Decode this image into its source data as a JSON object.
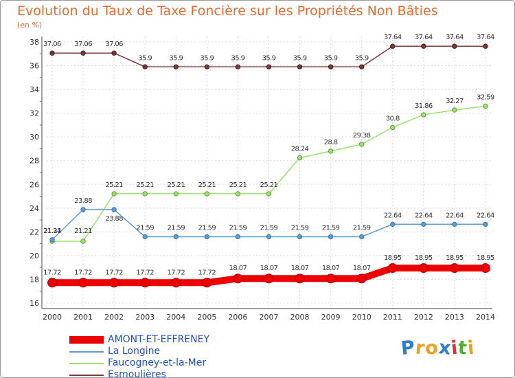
{
  "chart_data": {
    "type": "line",
    "title": "Evolution du Taux de Taxe Foncière sur les Propriétés Non Bâties",
    "subtitle": "(en %)",
    "x": [
      2000,
      2001,
      2002,
      2003,
      2004,
      2005,
      2006,
      2007,
      2008,
      2009,
      2010,
      2011,
      2012,
      2013,
      2014
    ],
    "x_tick_labels": [
      "2000",
      "2001",
      "2002",
      "2003",
      "2004",
      "2005",
      "2006",
      "2007",
      "2008",
      "2009",
      "2010",
      "2011",
      "2012",
      "2013",
      "2014"
    ],
    "ylim": [
      16,
      38
    ],
    "y_ticks": [
      16,
      18,
      20,
      22,
      24,
      26,
      28,
      30,
      32,
      34,
      36,
      38
    ],
    "grid": true,
    "legend_position": "bottom-left",
    "series": [
      {
        "name": "AMONT-ET-EFFRENEY",
        "color": "#ee0000",
        "values": [
          17.72,
          17.72,
          17.72,
          17.72,
          17.72,
          17.72,
          18.07,
          18.07,
          18.07,
          18.07,
          18.07,
          18.95,
          18.95,
          18.95,
          18.95
        ],
        "labels": [
          "17.72",
          "17.72",
          "17.72",
          "17.72",
          "17.72",
          "17.72",
          "18.07",
          "18.07",
          "18.07",
          "18.07",
          "18.07",
          "18.95",
          "18.95",
          "18.95",
          "18.95"
        ]
      },
      {
        "name": "La Longine",
        "color": "#5b9bd5",
        "values": [
          21.34,
          23.88,
          23.88,
          21.59,
          21.59,
          21.59,
          21.59,
          21.59,
          21.59,
          21.59,
          21.59,
          22.64,
          22.64,
          22.64,
          22.64
        ],
        "labels": [
          "21.34",
          "23.88",
          "23.88",
          "21.59",
          "21.59",
          "21.59",
          "21.59",
          "21.59",
          "21.59",
          "21.59",
          "21.59",
          "22.64",
          "22.64",
          "22.64",
          "22.64"
        ]
      },
      {
        "name": "Faucogney-et-la-Mer",
        "color": "#9be26a",
        "values": [
          21.21,
          21.21,
          25.21,
          25.21,
          25.21,
          25.21,
          25.21,
          25.21,
          28.24,
          28.8,
          29.38,
          30.8,
          31.86,
          32.27,
          32.59
        ],
        "labels": [
          "21.21",
          "21.21",
          "25.21",
          "25.21",
          "25.21",
          "25.21",
          "25.21",
          "25.21",
          "28.24",
          "28.8",
          "29.38",
          "30.8",
          "31.86",
          "32.27",
          "32.59"
        ]
      },
      {
        "name": "Esmoulières",
        "color": "#7a3a3a",
        "values": [
          37.06,
          37.06,
          37.06,
          35.9,
          35.9,
          35.9,
          35.9,
          35.9,
          35.9,
          35.9,
          35.9,
          37.64,
          37.64,
          37.64,
          37.64
        ],
        "labels": [
          "37.06",
          "37.06",
          "37.06",
          "35.9",
          "35.9",
          "35.9",
          "35.9",
          "35.9",
          "35.9",
          "35.9",
          "35.9",
          "37.64",
          "37.64",
          "37.64",
          "37.64"
        ]
      }
    ]
  },
  "logo": {
    "letters": [
      "P",
      "r",
      "o",
      "x",
      "i",
      "t",
      "i"
    ],
    "colors": [
      "#2a7fd4",
      "#f0a020",
      "#f0a020",
      "#2a7fd4",
      "#e03030",
      "#50b030",
      "#f0a020"
    ]
  }
}
